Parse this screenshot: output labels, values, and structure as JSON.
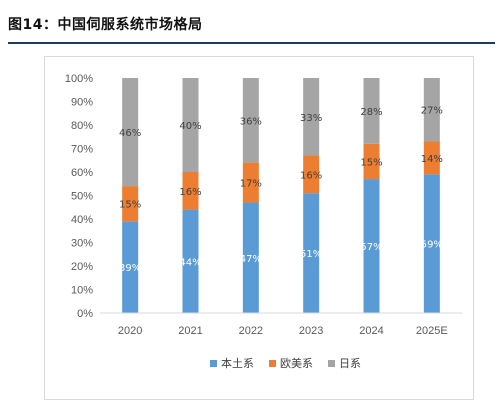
{
  "header": {
    "title": "图14：中国伺服系统市场格局"
  },
  "chart_data": {
    "type": "bar",
    "stacked": true,
    "percent_stacked": true,
    "categories": [
      "2020",
      "2021",
      "2022",
      "2023",
      "2024",
      "2025E"
    ],
    "series": [
      {
        "name": "本土系",
        "color": "#5b9bd5",
        "values": [
          39,
          44,
          47,
          51,
          57,
          59
        ],
        "labels": [
          "39%",
          "44%",
          "47%",
          "51%",
          "57%",
          "59%"
        ],
        "label_color": "#ffffff"
      },
      {
        "name": "欧美系",
        "color": "#ed7d31",
        "values": [
          15,
          16,
          17,
          16,
          15,
          14
        ],
        "labels": [
          "15%",
          "16%",
          "17%",
          "16%",
          "15%",
          "14%"
        ],
        "label_color": "#404040"
      },
      {
        "name": "日系",
        "color": "#a5a5a5",
        "values": [
          46,
          40,
          36,
          33,
          28,
          27
        ],
        "labels": [
          "46%",
          "40%",
          "36%",
          "33%",
          "28%",
          "27%"
        ],
        "label_color": "#404040"
      }
    ],
    "y_ticks": [
      "0%",
      "10%",
      "20%",
      "30%",
      "40%",
      "50%",
      "60%",
      "70%",
      "80%",
      "90%",
      "100%"
    ],
    "ylim": [
      0,
      100
    ],
    "grid": false,
    "legend": "bottom"
  }
}
